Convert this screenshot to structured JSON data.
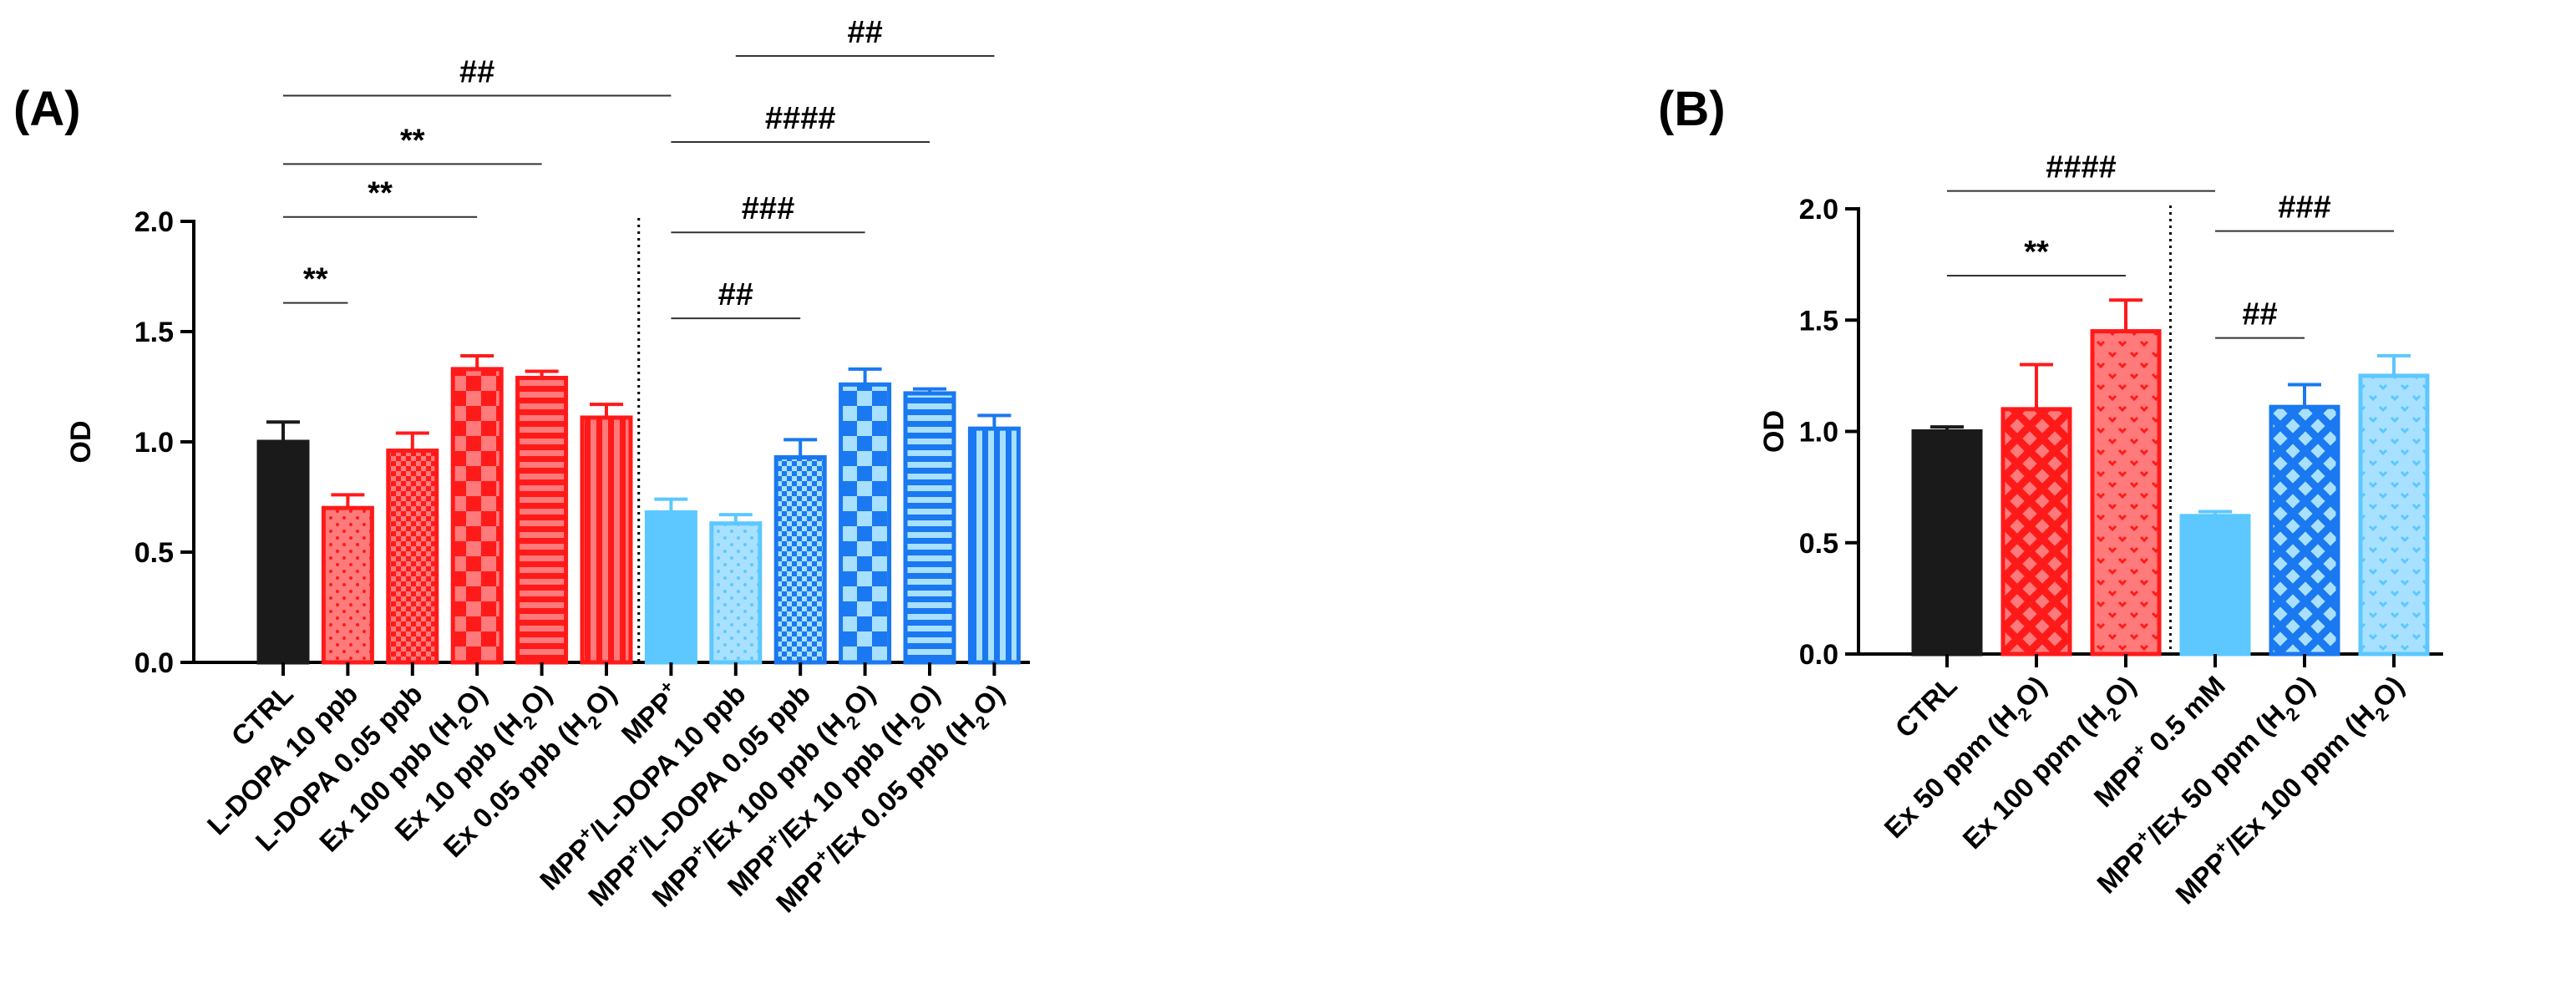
{
  "colors": {
    "black": "#1a1a1a",
    "red": "#ff1a1a",
    "light_blue": "#5cc8ff",
    "blue": "#1a78f0",
    "axis": "#000000",
    "sig_line": "#333333"
  },
  "chart_data": [
    {
      "panel": "(A)",
      "type": "bar",
      "ylabel": "OD",
      "ylim": [
        0,
        2.0
      ],
      "yticks": [
        "0.0",
        "0.5",
        "1.0",
        "1.5",
        "2.0"
      ],
      "categories": [
        {
          "label": "CTRL",
          "value": 1.0,
          "error": 0.09,
          "color": "black",
          "pattern": "none"
        },
        {
          "label": "L-DOPA 10 ppb",
          "value": 0.7,
          "error": 0.06,
          "color": "red",
          "pattern": "dots"
        },
        {
          "label": "L-DOPA 0.05 ppb",
          "value": 0.96,
          "error": 0.08,
          "color": "red",
          "pattern": "fine-check"
        },
        {
          "label": "Ex 100 ppb (H2O)",
          "value": 1.33,
          "error": 0.06,
          "color": "red",
          "pattern": "check"
        },
        {
          "label": "Ex 10 ppb (H2O)",
          "value": 1.29,
          "error": 0.03,
          "color": "red",
          "pattern": "hlines"
        },
        {
          "label": "Ex 0.05 ppb (H2O)",
          "value": 1.11,
          "error": 0.06,
          "color": "red",
          "pattern": "vlines"
        },
        {
          "label": "MPP+",
          "value": 0.68,
          "error": 0.06,
          "color": "light_blue",
          "pattern": "none"
        },
        {
          "label": "MPP+/L-DOPA 10 ppb",
          "value": 0.63,
          "error": 0.04,
          "color": "light_blue",
          "pattern": "dots"
        },
        {
          "label": "MPP+/L-DOPA 0.05 ppb",
          "value": 0.93,
          "error": 0.08,
          "color": "blue",
          "pattern": "fine-check"
        },
        {
          "label": "MPP+/Ex 100 ppb (H2O)",
          "value": 1.26,
          "error": 0.07,
          "color": "blue",
          "pattern": "check"
        },
        {
          "label": "MPP+/Ex 10 ppb (H2O)",
          "value": 1.22,
          "error": 0.02,
          "color": "blue",
          "pattern": "hlines"
        },
        {
          "label": "MPP+/Ex 0.05 ppb (H2O)",
          "value": 1.06,
          "error": 0.06,
          "color": "blue",
          "pattern": "vlines"
        }
      ],
      "divider_after_index": 5,
      "significance": [
        {
          "from": 0,
          "to": 1,
          "text": "**",
          "level": 1.63
        },
        {
          "from": 0,
          "to": 3,
          "text": "**",
          "level": 2.02
        },
        {
          "from": 0,
          "to": 4,
          "text": "**",
          "level": 2.26
        },
        {
          "from": 0,
          "to": 6,
          "text": "##",
          "level": 2.57
        },
        {
          "from": 6,
          "to": 8,
          "text": "##",
          "level": 1.56
        },
        {
          "from": 6,
          "to": 9,
          "text": "###",
          "level": 1.95
        },
        {
          "from": 6,
          "to": 10,
          "text": "####",
          "level": 2.36
        },
        {
          "from": 7,
          "to": 11,
          "text": "##",
          "level": 2.75
        }
      ]
    },
    {
      "panel": "(B)",
      "type": "bar",
      "ylabel": "OD",
      "ylim": [
        0,
        2.0
      ],
      "yticks": [
        "0.0",
        "0.5",
        "1.0",
        "1.5",
        "2.0"
      ],
      "categories": [
        {
          "label": "CTRL",
          "value": 1.0,
          "error": 0.02,
          "color": "black",
          "pattern": "none"
        },
        {
          "label": "Ex 50 ppm (H2O)",
          "value": 1.1,
          "error": 0.2,
          "color": "red",
          "pattern": "lattice"
        },
        {
          "label": "Ex 100 ppm (H2O)",
          "value": 1.45,
          "error": 0.14,
          "color": "red",
          "pattern": "waves"
        },
        {
          "label": "MPP+ 0.5 mM",
          "value": 0.62,
          "error": 0.02,
          "color": "light_blue",
          "pattern": "none"
        },
        {
          "label": "MPP+/Ex 50 ppm (H2O)",
          "value": 1.11,
          "error": 0.1,
          "color": "blue",
          "pattern": "lattice"
        },
        {
          "label": "MPP+/Ex 100 ppm (H2O)",
          "value": 1.25,
          "error": 0.09,
          "color": "light_blue",
          "pattern": "waves"
        }
      ],
      "divider_after_index": 2,
      "significance": [
        {
          "from": 0,
          "to": 2,
          "text": "**",
          "level": 1.7
        },
        {
          "from": 0,
          "to": 3,
          "text": "####",
          "level": 2.08
        },
        {
          "from": 3,
          "to": 4,
          "text": "##",
          "level": 1.42
        },
        {
          "from": 3,
          "to": 5,
          "text": "###",
          "level": 1.9
        }
      ]
    }
  ]
}
